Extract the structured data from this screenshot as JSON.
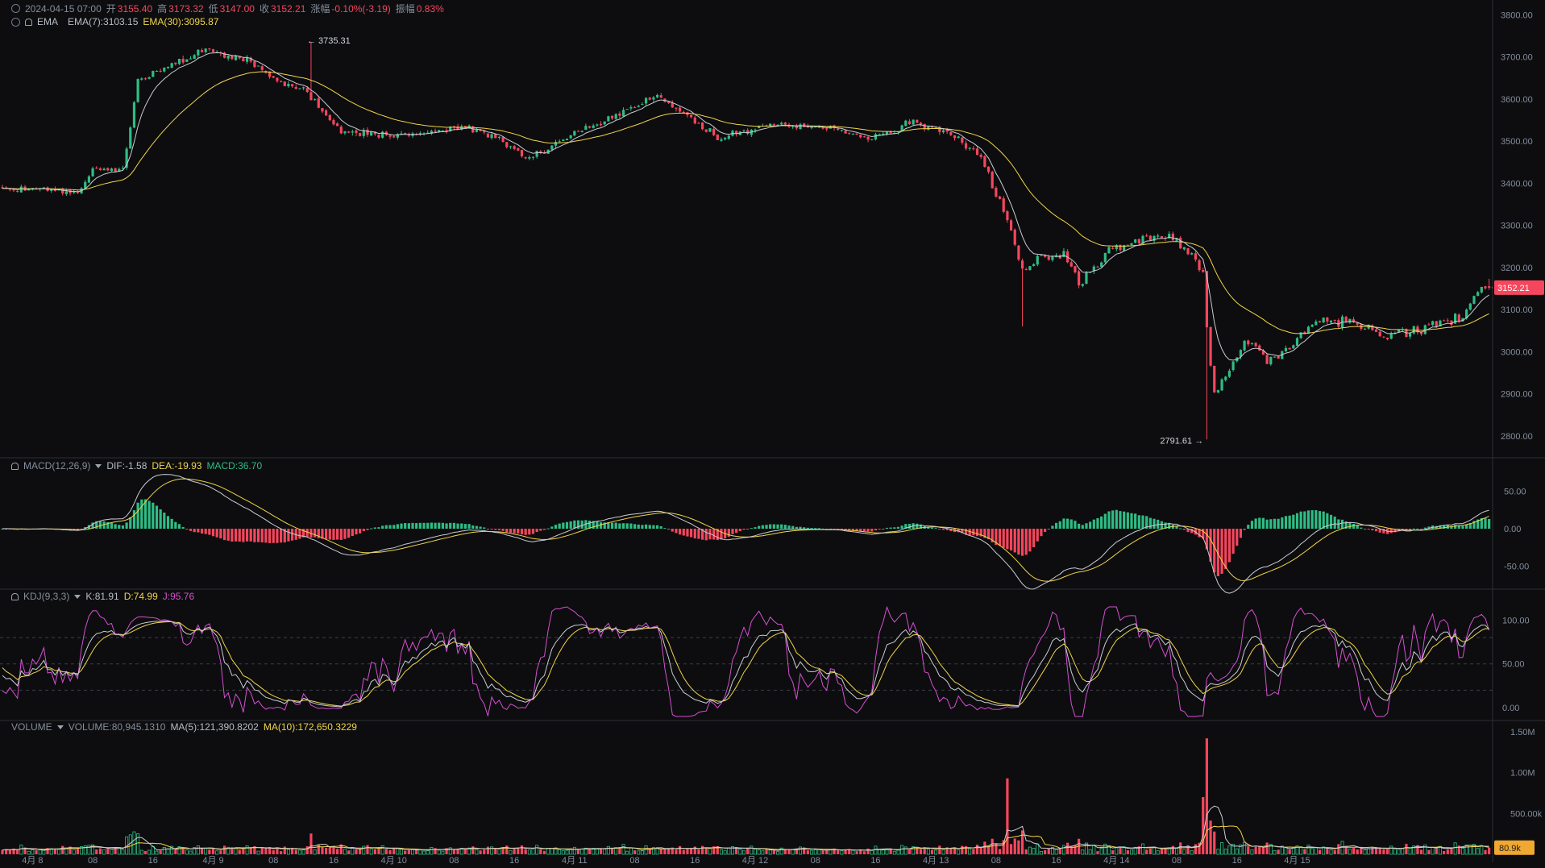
{
  "header": {
    "datetime": "2024-04-15 07:00",
    "open_label": "开",
    "open": "3155.40",
    "high_label": "高",
    "high": "3173.32",
    "low_label": "低",
    "low": "3147.00",
    "close_label": "收",
    "close": "3152.21",
    "change_label": "涨幅",
    "change": "-0.10%(-3.19)",
    "amp_label": "振幅",
    "amp": "0.83%"
  },
  "ema_legend": {
    "name": "EMA",
    "ema7": "EMA(7):3103.15",
    "ema30": "EMA(30):3095.87"
  },
  "macd_legend": {
    "name": "MACD(12,26,9)",
    "dif": "DIF:-1.58",
    "dea": "DEA:-19.93",
    "macd": "MACD:36.70"
  },
  "kdj_legend": {
    "name": "KDJ(9,3,3)",
    "k": "K:81.91",
    "d": "D:74.99",
    "j": "J:95.76"
  },
  "vol_legend": {
    "name": "VOLUME",
    "vol": "VOLUME:80,945.1310",
    "ma5": "MA(5):121,390.8202",
    "ma10": "MA(10):172,650.3229"
  },
  "colors": {
    "up": "#2ebd85",
    "down": "#f6465d",
    "ema7": "#c8ccd2",
    "ema30": "#f0d449",
    "kdj_j": "#d64fd2",
    "bg": "#0d0d0f"
  },
  "chart_data": [
    {
      "type": "candlestick",
      "panel": "price",
      "interval": "1h",
      "ylim": [
        2750,
        3820
      ],
      "y_ticks": [
        "3800.00",
        "3700.00",
        "3600.00",
        "3500.00",
        "3400.00",
        "3300.00",
        "3200.00",
        "3100.00",
        "3000.00",
        "2900.00",
        "2800.00"
      ],
      "x_ticks": [
        "4月 8",
        "08",
        "16",
        "4月 9",
        "08",
        "16",
        "4月 10",
        "08",
        "16",
        "4月 11",
        "08",
        "16",
        "4月 12",
        "08",
        "16",
        "4月 13",
        "08",
        "16",
        "4月 14",
        "08",
        "16",
        "4月 15"
      ],
      "last_price": "3152.21",
      "max_label": "3735.31",
      "min_label": "2791.61",
      "series_keypoints": [
        [
          0,
          3388
        ],
        [
          12,
          3385
        ],
        [
          20,
          3378
        ],
        [
          24,
          3430
        ],
        [
          32,
          3435
        ],
        [
          36,
          3645
        ],
        [
          46,
          3685
        ],
        [
          54,
          3718
        ],
        [
          66,
          3690
        ],
        [
          74,
          3638
        ],
        [
          80,
          3625
        ],
        [
          90,
          3520
        ],
        [
          110,
          3515
        ],
        [
          122,
          3535
        ],
        [
          130,
          3510
        ],
        [
          140,
          3460
        ],
        [
          152,
          3520
        ],
        [
          162,
          3555
        ],
        [
          174,
          3610
        ],
        [
          182,
          3565
        ],
        [
          190,
          3505
        ],
        [
          204,
          3540
        ],
        [
          222,
          3530
        ],
        [
          230,
          3505
        ],
        [
          242,
          3545
        ],
        [
          252,
          3520
        ],
        [
          260,
          3460
        ],
        [
          266,
          3340
        ],
        [
          271,
          3200
        ],
        [
          276,
          3225
        ],
        [
          282,
          3230
        ],
        [
          286,
          3160
        ],
        [
          294,
          3240
        ],
        [
          304,
          3270
        ],
        [
          310,
          3275
        ],
        [
          316,
          3230
        ],
        [
          319,
          3175
        ],
        [
          320,
          3055
        ],
        [
          322,
          2905
        ],
        [
          326,
          2945
        ],
        [
          330,
          3030
        ],
        [
          336,
          2985
        ],
        [
          342,
          3010
        ],
        [
          350,
          3080
        ],
        [
          358,
          3075
        ],
        [
          366,
          3040
        ],
        [
          374,
          3045
        ],
        [
          382,
          3075
        ],
        [
          388,
          3082
        ],
        [
          392,
          3150
        ]
      ]
    },
    {
      "type": "bar+line",
      "panel": "macd",
      "ylim": [
        -75,
        75
      ],
      "y_ticks": [
        "50.00",
        "0.00",
        "-50.00"
      ],
      "dif_last": -1.58,
      "dea_last": -19.93,
      "hist_last": 36.7
    },
    {
      "type": "line",
      "panel": "kdj",
      "ylim": [
        -10,
        115
      ],
      "y_ticks": [
        "100.00",
        "50.00",
        "0.00"
      ],
      "guides": [
        80,
        50,
        20
      ],
      "k_last": 81.91,
      "d_last": 74.99,
      "j_last": 95.76
    },
    {
      "type": "bar",
      "panel": "volume",
      "ylim": [
        0,
        1500000
      ],
      "y_ticks": [
        "1.50M",
        "1.00M",
        "500.00k"
      ],
      "last_label": "80.9k"
    }
  ]
}
